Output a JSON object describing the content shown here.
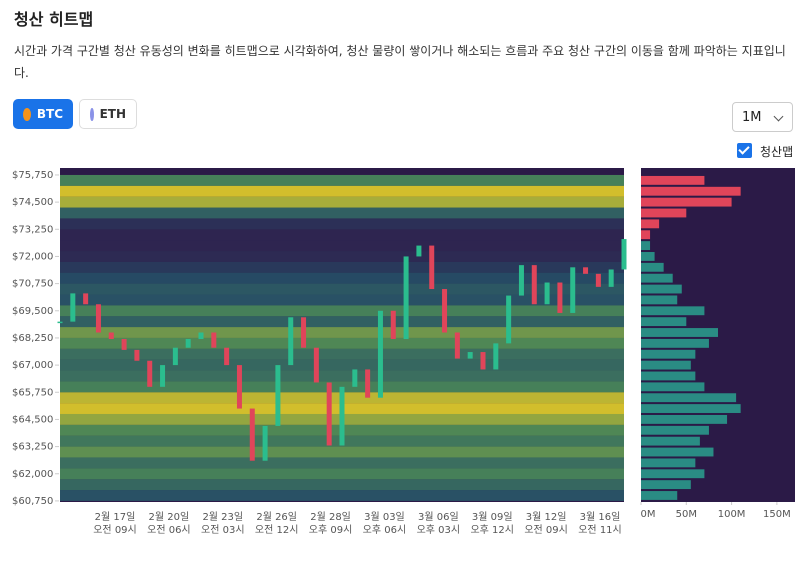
{
  "header": {
    "title": "청산 히트맵",
    "description": "시간과 가격 구간별 청산 유동성의 변화를 히트맵으로 시각화하여, 청산 물량이 쌓이거나 해소되는 흐름과 주요 청산 구간의 이동을 함께 파악하는 지표입니다."
  },
  "controls": {
    "coins": [
      "BTC",
      "ETH"
    ],
    "period": "1M",
    "toggle": "청산맵"
  },
  "chart_data": {
    "type": "heatmap",
    "ylim": [
      60700,
      76070
    ],
    "yticks": [
      {
        "value": 60750,
        "label": "$60,750"
      },
      {
        "value": 62000,
        "label": "$62,000"
      },
      {
        "value": 63250,
        "label": "$63,250"
      },
      {
        "value": 64500,
        "label": "$64,500"
      },
      {
        "value": 65750,
        "label": "$65,750"
      },
      {
        "value": 67000,
        "label": "$67,000"
      },
      {
        "value": 68250,
        "label": "$68,250"
      },
      {
        "value": 69500,
        "label": "$69,500"
      },
      {
        "value": 70750,
        "label": "$70,750"
      },
      {
        "value": 72000,
        "label": "$72,000"
      },
      {
        "value": 73250,
        "label": "$73,250"
      },
      {
        "value": 74500,
        "label": "$74,500"
      },
      {
        "value": 75750,
        "label": "$75,750"
      }
    ],
    "x_labels": [
      {
        "date": "2월 17일",
        "time": "오전 09시"
      },
      {
        "date": "2월 20일",
        "time": "오전 06시"
      },
      {
        "date": "2월 23일",
        "time": "오전 03시"
      },
      {
        "date": "2월 26일",
        "time": "오전 12시"
      },
      {
        "date": "2월 28일",
        "time": "오후 09시"
      },
      {
        "date": "3월 03일",
        "time": "오후 06시"
      },
      {
        "date": "3월 06일",
        "time": "오후 03시"
      },
      {
        "date": "3월 09일",
        "time": "오후 12시"
      },
      {
        "date": "3월 12일",
        "time": "오전 09시"
      },
      {
        "date": "3월 16일",
        "time": "오전 11시"
      }
    ],
    "price": {
      "up_color": "#2bbd8e",
      "down_color": "#e0455a",
      "values": [
        69000,
        70300,
        69800,
        68500,
        68200,
        67700,
        67200,
        66000,
        67000,
        67800,
        68200,
        68500,
        67800,
        67000,
        65000,
        62600,
        64200,
        67000,
        69200,
        67800,
        66200,
        63300,
        66000,
        66800,
        65500,
        69500,
        68200,
        72000,
        72500,
        70500,
        68500,
        67300,
        67600,
        66800,
        68000,
        70200,
        71600,
        69800,
        70800,
        69400,
        71500,
        71200,
        70600,
        71400,
        72800
      ]
    },
    "profile": {
      "xlim": [
        0,
        170
      ],
      "xticks": [
        {
          "value": 0,
          "label": "0M"
        },
        {
          "value": 50,
          "label": "50M"
        },
        {
          "value": 100,
          "label": "100M"
        },
        {
          "value": 150,
          "label": "150M"
        }
      ],
      "color_below": "#2a8c84",
      "color_above": "#e0455a",
      "levels": [
        61000,
        61500,
        62000,
        62500,
        63000,
        63500,
        64000,
        64500,
        65000,
        65500,
        66000,
        66500,
        67000,
        67500,
        68000,
        68500,
        69000,
        69500,
        70000,
        70500,
        71000,
        71500,
        72000,
        72500,
        73000,
        73500,
        74000,
        74500,
        75000,
        75500
      ],
      "values": [
        40,
        55,
        70,
        60,
        80,
        65,
        75,
        95,
        110,
        105,
        70,
        60,
        55,
        60,
        75,
        85,
        50,
        70,
        40,
        45,
        35,
        25,
        15,
        10,
        10,
        20,
        50,
        100,
        110,
        70
      ]
    }
  }
}
